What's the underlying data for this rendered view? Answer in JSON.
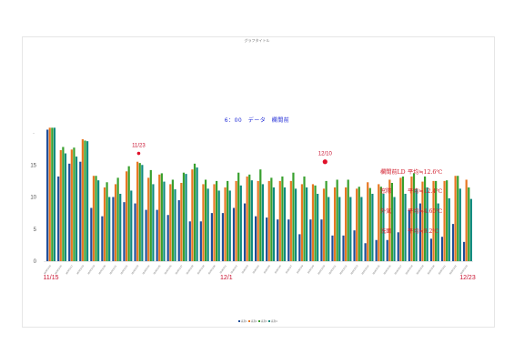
{
  "chart_data": {
    "type": "bar",
    "title": "グラフタイトル",
    "subtitle": "6：00　データ　欄間前",
    "ylim": [
      0,
      20
    ],
    "yticks": [
      0,
      5,
      10,
      15
    ],
    "categories": [
      "2020/11/15",
      "2020/11/16",
      "2020/11/17",
      "2020/11/18",
      "2020/11/19",
      "2020/11/20",
      "2020/11/21",
      "2020/11/22",
      "2020/11/23",
      "2020/11/24",
      "2020/11/25",
      "2020/11/26",
      "2020/11/27",
      "2020/11/28",
      "2020/11/29",
      "2020/11/30",
      "2020/12/1",
      "2020/12/2",
      "2020/12/3",
      "2020/12/4",
      "2020/12/5",
      "2020/12/6",
      "2020/12/7",
      "2020/12/8",
      "2020/12/9",
      "2020/12/10",
      "2020/12/11",
      "2020/12/12",
      "2020/12/13",
      "2020/12/14",
      "2020/12/15",
      "2020/12/16",
      "2020/12/17",
      "2020/12/18",
      "2020/12/19",
      "2020/12/20",
      "2020/12/21",
      "2020/12/22",
      "2020/12/23"
    ],
    "series": [
      {
        "name": "系列1",
        "color": "#1f4e99",
        "values": [
          20.5,
          13.2,
          15.2,
          15.5,
          8.3,
          7.0,
          10.0,
          9.2,
          9.0,
          8.0,
          8.0,
          7.2,
          9.5,
          6.2,
          6.2,
          7.5,
          7.5,
          8.3,
          9.0,
          7.0,
          6.8,
          6.5,
          6.5,
          4.2,
          6.5,
          6.5,
          4.0,
          4.0,
          4.8,
          2.8,
          3.3,
          3.3,
          4.5,
          8.0,
          9.0,
          3.5,
          3.8,
          5.8,
          3.0
        ]
      },
      {
        "name": "系列2",
        "color": "#e87722",
        "values": [
          20.8,
          17.3,
          17.4,
          19.0,
          13.3,
          11.5,
          12.0,
          14.0,
          15.5,
          13.0,
          13.5,
          12.0,
          12.2,
          14.3,
          12.0,
          12.0,
          11.5,
          12.5,
          13.2,
          12.5,
          12.5,
          12.5,
          12.5,
          12.0,
          12.0,
          11.3,
          11.5,
          11.5,
          11.3,
          12.3,
          12.0,
          12.7,
          13.0,
          13.2,
          12.4,
          12.5,
          12.5,
          13.3,
          12.7
        ]
      },
      {
        "name": "系列3",
        "color": "#38a02e",
        "values": [
          20.8,
          17.8,
          17.7,
          18.8,
          13.3,
          12.3,
          13.0,
          14.8,
          15.3,
          14.2,
          13.7,
          12.7,
          13.8,
          15.2,
          12.7,
          12.5,
          12.5,
          13.8,
          13.5,
          14.3,
          13.0,
          13.2,
          13.8,
          13.2,
          11.8,
          12.5,
          12.7,
          12.7,
          11.6,
          11.4,
          11.6,
          12.2,
          13.2,
          13.7,
          13.2,
          12.5,
          12.6,
          13.3,
          11.5
        ]
      },
      {
        "name": "系列4",
        "color": "#0f8a7f",
        "values": [
          20.8,
          16.8,
          16.3,
          18.7,
          12.6,
          10.0,
          10.5,
          11.0,
          15.0,
          12.0,
          12.4,
          11.2,
          13.6,
          14.6,
          11.3,
          11.0,
          11.0,
          11.8,
          12.6,
          12.0,
          11.5,
          11.5,
          11.3,
          11.5,
          10.5,
          10.0,
          10.0,
          10.0,
          10.0,
          10.5,
          10.5,
          10.0,
          10.5,
          11.3,
          11.5,
          9.0,
          9.8,
          11.3,
          9.7
        ]
      }
    ],
    "grid": false,
    "legend": "bottom",
    "annotations": [
      {
        "label": "11/23",
        "x": "2020/11/23",
        "y": 16.8
      },
      {
        "label": "12/10",
        "x": "2020/12/10",
        "y": 15.5
      }
    ],
    "axis_markers": [
      {
        "label": "11/15",
        "x": "2020/11/15"
      },
      {
        "label": "12/1",
        "x": "2020/12/1"
      },
      {
        "label": "12/23",
        "x": "2020/12/23"
      }
    ]
  },
  "stats": [
    {
      "name": "欄間前LD",
      "value": "平均≒12.6℃"
    },
    {
      "name": "窓際",
      "value": "平均≒12.4℃"
    },
    {
      "name": "外気",
      "value": "平均≒4.65℃"
    },
    {
      "name": "洗面",
      "value": "平均≒9.2℃"
    }
  ]
}
